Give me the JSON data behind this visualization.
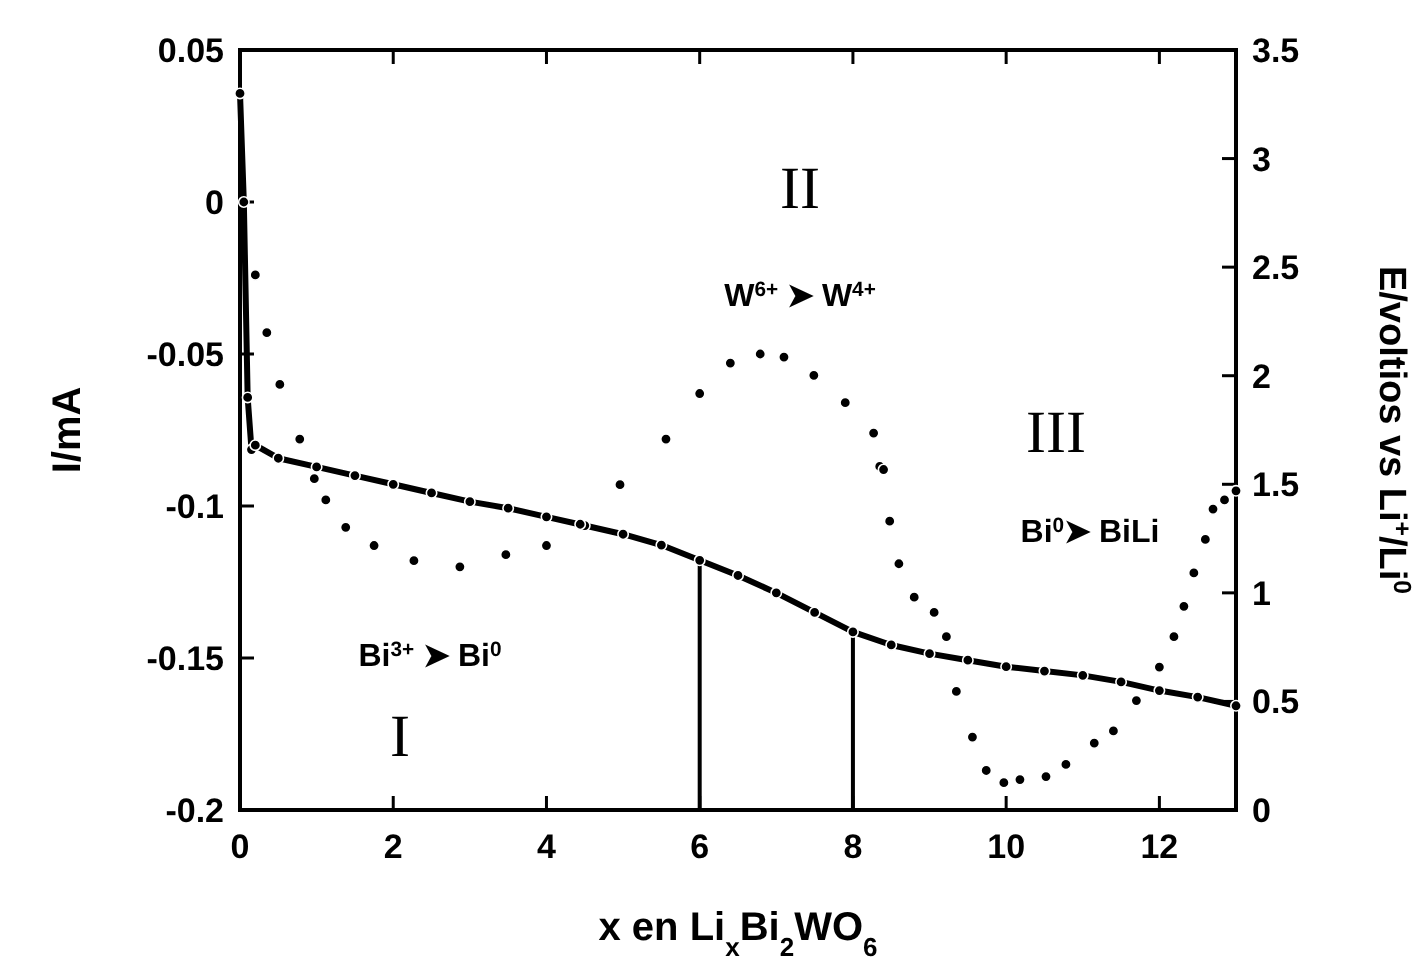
{
  "chart_data": {
    "type": "scatter",
    "xlabel": "x en Li$_{x}$Bi$_{2}$WO$_{6}$",
    "ylabel": "I/mA",
    "y2label": "E/voltios vs Li$^{+}$/Li$^{0}$",
    "xlim": [
      0,
      13
    ],
    "xticks": [
      0,
      2,
      4,
      6,
      8,
      10,
      12
    ],
    "ylim": [
      -0.2,
      0.05
    ],
    "yticks": [
      -0.2,
      -0.15,
      -0.1,
      -0.05,
      0,
      0.05
    ],
    "y2lim": [
      0,
      3.5
    ],
    "y2ticks": [
      0,
      0.5,
      1,
      1.5,
      2,
      2.5,
      3,
      3.5
    ],
    "marker": "circle",
    "grid": false,
    "series": [
      {
        "color": "#000000",
        "x": [
          0.2,
          0.35,
          0.52,
          0.78,
          0.97,
          1.12,
          1.38,
          1.75,
          2.27,
          2.87,
          3.47,
          4.0,
          4.44,
          4.96,
          5.56,
          6.0,
          6.4,
          6.79,
          7.1,
          7.49,
          7.9,
          8.27,
          8.35,
          8.4,
          8.48,
          8.6,
          8.8,
          9.06,
          9.22,
          9.35,
          9.56,
          9.74,
          9.97,
          10.18,
          10.52,
          10.78,
          11.15,
          11.4,
          11.7,
          12.0,
          12.19,
          12.32,
          12.45,
          12.6,
          12.7,
          12.85,
          13.0
        ],
        "values": [
          -0.024,
          -0.043,
          -0.06,
          -0.078,
          -0.091,
          -0.098,
          -0.107,
          -0.113,
          -0.118,
          -0.12,
          -0.116,
          -0.113,
          -0.106,
          -0.093,
          -0.078,
          -0.063,
          -0.053,
          -0.05,
          -0.051,
          -0.057,
          -0.066,
          -0.076,
          -0.087,
          -0.088,
          -0.105,
          -0.119,
          -0.13,
          -0.135,
          -0.143,
          -0.161,
          -0.176,
          -0.187,
          -0.191,
          -0.19,
          -0.189,
          -0.185,
          -0.178,
          -0.174,
          -0.164,
          -0.153,
          -0.143,
          -0.133,
          -0.122,
          -0.111,
          -0.101,
          -0.098,
          -0.095
        ]
      },
      {
        "type": "line",
        "axis": "y2",
        "color": "#000000",
        "x": [
          0,
          0.05,
          0.1,
          0.15,
          0.2,
          0.5,
          1,
          1.5,
          2,
          2.5,
          3,
          3.5,
          4,
          4.5,
          5,
          5.5,
          6,
          6.5,
          7,
          7.5,
          8,
          8.5,
          9,
          9.5,
          10,
          10.5,
          11,
          11.5,
          12,
          12.5,
          13
        ],
        "values": [
          3.3,
          2.8,
          1.9,
          1.66,
          1.68,
          1.62,
          1.58,
          1.54,
          1.5,
          1.46,
          1.42,
          1.39,
          1.35,
          1.31,
          1.27,
          1.22,
          1.15,
          1.08,
          1.0,
          0.91,
          0.82,
          0.76,
          0.72,
          0.69,
          0.66,
          0.64,
          0.62,
          0.59,
          0.55,
          0.52,
          0.48
        ]
      }
    ],
    "ref_lines": [
      {
        "axis": "x",
        "value": 6
      },
      {
        "axis": "x",
        "value": 8
      }
    ],
    "annotations": [
      "II",
      "W$^{6+}$ ➤ W$^{4+}$",
      "III",
      "Bi$^{0}$➤ BiLi",
      "Bi$^{3+}$ ➤ Bi$^{0}$",
      "I"
    ]
  }
}
